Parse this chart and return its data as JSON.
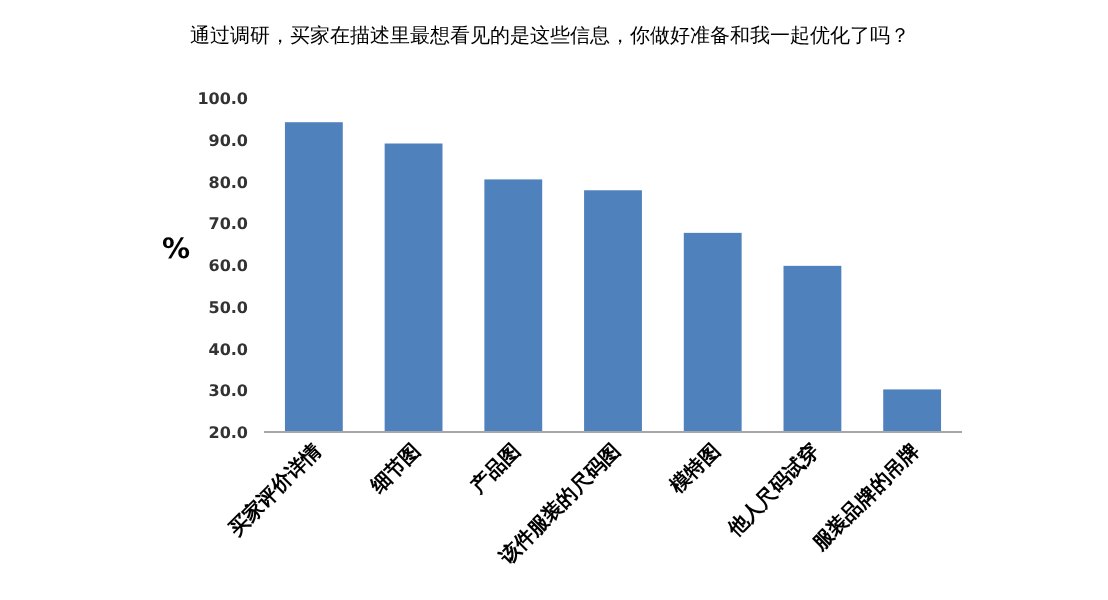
{
  "chart_data": {
    "type": "bar",
    "title": "通过调研，买家在描述里最想看见的是这些信息，你做好准备和我一起优化了吗？",
    "ylabel": "%",
    "categories": [
      "买家评价详情",
      "细节图",
      "产品图",
      "该件服装的尺码图",
      "模特图",
      "他人尺码试穿",
      "服装品牌的吊牌"
    ],
    "values": [
      94.2,
      89.1,
      80.5,
      77.9,
      67.7,
      59.8,
      30.2
    ],
    "color": "#4f81bd",
    "ylim": [
      20,
      100
    ],
    "yticks": [
      {
        "value": 20,
        "label": "20.0"
      },
      {
        "value": 30,
        "label": "30.0"
      },
      {
        "value": 40,
        "label": "40.0"
      },
      {
        "value": 50,
        "label": "50.0"
      },
      {
        "value": 60,
        "label": "60.0"
      },
      {
        "value": 70,
        "label": "70.0"
      },
      {
        "value": 80,
        "label": "80.0"
      },
      {
        "value": 90,
        "label": "90.0"
      },
      {
        "value": 100,
        "label": "100.0"
      }
    ],
    "grid": false
  }
}
